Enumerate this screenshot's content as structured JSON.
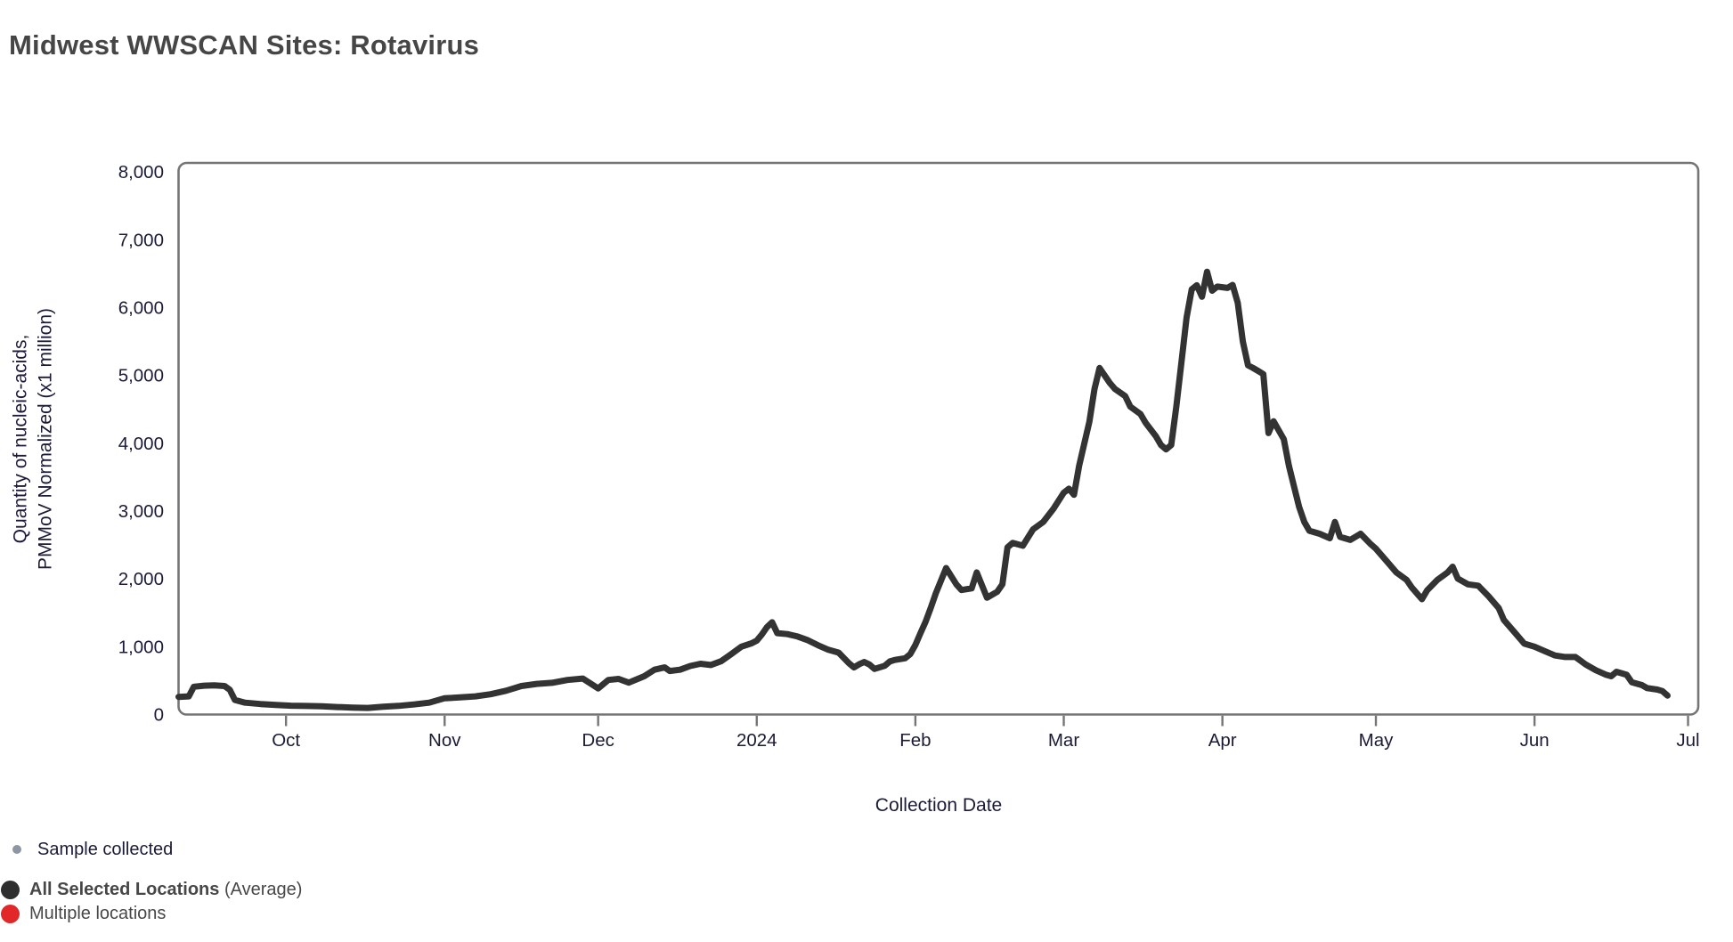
{
  "header": {
    "title": "Midwest WWSCAN Sites: Rotavirus"
  },
  "style": {
    "background": "#ffffff",
    "title_color": "#464646",
    "axis_text_color": "#1b1b38",
    "plot_border_color": "#757575",
    "line_color": "#333333"
  },
  "chart_data": {
    "type": "line",
    "title": "Midwest WWSCAN Sites: Rotavirus",
    "xlabel": "Collection Date",
    "ylabel_lines": [
      "Quantity of nucleic-acids,",
      "PMMoV Normalized (x1 million)"
    ],
    "ylim": [
      0,
      8000
    ],
    "grid": false,
    "legend_position": "bottom-left",
    "x_domain": [
      "2023-09-10",
      "2024-07-03"
    ],
    "yticks": [
      {
        "value": 0,
        "label": "0"
      },
      {
        "value": 1000,
        "label": "1,000"
      },
      {
        "value": 2000,
        "label": "2,000"
      },
      {
        "value": 3000,
        "label": "3,000"
      },
      {
        "value": 4000,
        "label": "4,000"
      },
      {
        "value": 5000,
        "label": "5,000"
      },
      {
        "value": 6000,
        "label": "6,000"
      },
      {
        "value": 7000,
        "label": "7,000"
      },
      {
        "value": 8000,
        "label": "8,000"
      }
    ],
    "xticks": [
      {
        "date": "2023-10-01",
        "label": "Oct"
      },
      {
        "date": "2023-11-01",
        "label": "Nov"
      },
      {
        "date": "2023-12-01",
        "label": "Dec"
      },
      {
        "date": "2024-01-01",
        "label": "2024"
      },
      {
        "date": "2024-02-01",
        "label": "Feb"
      },
      {
        "date": "2024-03-01",
        "label": "Mar"
      },
      {
        "date": "2024-04-01",
        "label": "Apr"
      },
      {
        "date": "2024-05-01",
        "label": "May"
      },
      {
        "date": "2024-06-01",
        "label": "Jun"
      },
      {
        "date": "2024-07-01",
        "label": "Jul"
      }
    ],
    "series": [
      {
        "name": "All Selected Locations (Average)",
        "color": "#333333",
        "points": [
          [
            "2023-09-10",
            260
          ],
          [
            "2023-09-12",
            268
          ],
          [
            "2023-09-13",
            410
          ],
          [
            "2023-09-15",
            425
          ],
          [
            "2023-09-17",
            430
          ],
          [
            "2023-09-19",
            420
          ],
          [
            "2023-09-20",
            365
          ],
          [
            "2023-09-21",
            215
          ],
          [
            "2023-09-23",
            175
          ],
          [
            "2023-09-26",
            155
          ],
          [
            "2023-09-29",
            140
          ],
          [
            "2023-10-02",
            130
          ],
          [
            "2023-10-05",
            126
          ],
          [
            "2023-10-08",
            122
          ],
          [
            "2023-10-11",
            110
          ],
          [
            "2023-10-14",
            103
          ],
          [
            "2023-10-17",
            97
          ],
          [
            "2023-10-20",
            115
          ],
          [
            "2023-10-23",
            127
          ],
          [
            "2023-10-26",
            148
          ],
          [
            "2023-10-29",
            175
          ],
          [
            "2023-11-01",
            240
          ],
          [
            "2023-11-04",
            252
          ],
          [
            "2023-11-07",
            268
          ],
          [
            "2023-11-10",
            300
          ],
          [
            "2023-11-13",
            350
          ],
          [
            "2023-11-16",
            420
          ],
          [
            "2023-11-19",
            452
          ],
          [
            "2023-11-22",
            468
          ],
          [
            "2023-11-25",
            510
          ],
          [
            "2023-11-28",
            530
          ],
          [
            "2023-12-01",
            385
          ],
          [
            "2023-12-03",
            510
          ],
          [
            "2023-12-05",
            525
          ],
          [
            "2023-12-07",
            470
          ],
          [
            "2023-12-10",
            565
          ],
          [
            "2023-12-12",
            660
          ],
          [
            "2023-12-14",
            695
          ],
          [
            "2023-12-15",
            642
          ],
          [
            "2023-12-17",
            660
          ],
          [
            "2023-12-19",
            715
          ],
          [
            "2023-12-21",
            748
          ],
          [
            "2023-12-23",
            730
          ],
          [
            "2023-12-25",
            785
          ],
          [
            "2023-12-27",
            890
          ],
          [
            "2023-12-29",
            1000
          ],
          [
            "2023-12-31",
            1050
          ],
          [
            "2024-01-01",
            1090
          ],
          [
            "2024-01-02",
            1180
          ],
          [
            "2024-01-03",
            1290
          ],
          [
            "2024-01-04",
            1360
          ],
          [
            "2024-01-05",
            1200
          ],
          [
            "2024-01-07",
            1185
          ],
          [
            "2024-01-09",
            1150
          ],
          [
            "2024-01-11",
            1095
          ],
          [
            "2024-01-13",
            1020
          ],
          [
            "2024-01-15",
            955
          ],
          [
            "2024-01-17",
            912
          ],
          [
            "2024-01-18",
            835
          ],
          [
            "2024-01-19",
            758
          ],
          [
            "2024-01-20",
            695
          ],
          [
            "2024-01-21",
            740
          ],
          [
            "2024-01-22",
            775
          ],
          [
            "2024-01-23",
            738
          ],
          [
            "2024-01-24",
            672
          ],
          [
            "2024-01-26",
            718
          ],
          [
            "2024-01-27",
            783
          ],
          [
            "2024-01-28",
            805
          ],
          [
            "2024-01-30",
            830
          ],
          [
            "2024-01-31",
            890
          ],
          [
            "2024-02-01",
            1025
          ],
          [
            "2024-02-02",
            1200
          ],
          [
            "2024-02-03",
            1370
          ],
          [
            "2024-02-04",
            1570
          ],
          [
            "2024-02-05",
            1790
          ],
          [
            "2024-02-07",
            2160
          ],
          [
            "2024-02-09",
            1920
          ],
          [
            "2024-02-10",
            1835
          ],
          [
            "2024-02-12",
            1860
          ],
          [
            "2024-02-13",
            2095
          ],
          [
            "2024-02-15",
            1722
          ],
          [
            "2024-02-17",
            1810
          ],
          [
            "2024-02-18",
            1920
          ],
          [
            "2024-02-19",
            2465
          ],
          [
            "2024-02-20",
            2530
          ],
          [
            "2024-02-22",
            2490
          ],
          [
            "2024-02-24",
            2730
          ],
          [
            "2024-02-26",
            2840
          ],
          [
            "2024-02-28",
            3035
          ],
          [
            "2024-03-01",
            3270
          ],
          [
            "2024-03-02",
            3330
          ],
          [
            "2024-03-03",
            3240
          ],
          [
            "2024-03-04",
            3670
          ],
          [
            "2024-03-06",
            4320
          ],
          [
            "2024-03-07",
            4800
          ],
          [
            "2024-03-08",
            5110
          ],
          [
            "2024-03-10",
            4890
          ],
          [
            "2024-03-11",
            4800
          ],
          [
            "2024-03-13",
            4695
          ],
          [
            "2024-03-14",
            4540
          ],
          [
            "2024-03-16",
            4430
          ],
          [
            "2024-03-17",
            4300
          ],
          [
            "2024-03-19",
            4105
          ],
          [
            "2024-03-20",
            3975
          ],
          [
            "2024-03-21",
            3910
          ],
          [
            "2024-03-22",
            3975
          ],
          [
            "2024-03-23",
            4540
          ],
          [
            "2024-03-24",
            5200
          ],
          [
            "2024-03-25",
            5850
          ],
          [
            "2024-03-26",
            6270
          ],
          [
            "2024-03-27",
            6330
          ],
          [
            "2024-03-28",
            6160
          ],
          [
            "2024-03-29",
            6530
          ],
          [
            "2024-03-30",
            6250
          ],
          [
            "2024-03-31",
            6310
          ],
          [
            "2024-04-02",
            6290
          ],
          [
            "2024-04-03",
            6335
          ],
          [
            "2024-04-04",
            6070
          ],
          [
            "2024-04-05",
            5500
          ],
          [
            "2024-04-06",
            5150
          ],
          [
            "2024-04-07",
            5110
          ],
          [
            "2024-04-08",
            5065
          ],
          [
            "2024-04-09",
            5020
          ],
          [
            "2024-04-10",
            4150
          ],
          [
            "2024-04-11",
            4325
          ],
          [
            "2024-04-13",
            4060
          ],
          [
            "2024-04-14",
            3670
          ],
          [
            "2024-04-15",
            3360
          ],
          [
            "2024-04-16",
            3060
          ],
          [
            "2024-04-17",
            2840
          ],
          [
            "2024-04-18",
            2710
          ],
          [
            "2024-04-20",
            2665
          ],
          [
            "2024-04-22",
            2600
          ],
          [
            "2024-04-23",
            2840
          ],
          [
            "2024-04-24",
            2620
          ],
          [
            "2024-04-26",
            2575
          ],
          [
            "2024-04-28",
            2665
          ],
          [
            "2024-04-30",
            2510
          ],
          [
            "2024-05-01",
            2445
          ],
          [
            "2024-05-03",
            2270
          ],
          [
            "2024-05-05",
            2095
          ],
          [
            "2024-05-07",
            1985
          ],
          [
            "2024-05-08",
            1875
          ],
          [
            "2024-05-10",
            1700
          ],
          [
            "2024-05-11",
            1830
          ],
          [
            "2024-05-13",
            1985
          ],
          [
            "2024-05-15",
            2095
          ],
          [
            "2024-05-16",
            2180
          ],
          [
            "2024-05-17",
            2005
          ],
          [
            "2024-05-19",
            1920
          ],
          [
            "2024-05-21",
            1900
          ],
          [
            "2024-05-23",
            1745
          ],
          [
            "2024-05-25",
            1570
          ],
          [
            "2024-05-26",
            1395
          ],
          [
            "2024-05-28",
            1220
          ],
          [
            "2024-05-30",
            1045
          ],
          [
            "2024-06-01",
            1000
          ],
          [
            "2024-06-03",
            935
          ],
          [
            "2024-06-05",
            870
          ],
          [
            "2024-06-07",
            848
          ],
          [
            "2024-06-09",
            848
          ],
          [
            "2024-06-11",
            738
          ],
          [
            "2024-06-13",
            652
          ],
          [
            "2024-06-15",
            586
          ],
          [
            "2024-06-16",
            564
          ],
          [
            "2024-06-17",
            630
          ],
          [
            "2024-06-19",
            586
          ],
          [
            "2024-06-20",
            476
          ],
          [
            "2024-06-22",
            433
          ],
          [
            "2024-06-23",
            390
          ],
          [
            "2024-06-25",
            367
          ],
          [
            "2024-06-26",
            345
          ],
          [
            "2024-06-27",
            280
          ]
        ]
      }
    ]
  },
  "legend": {
    "items": [
      {
        "label": "Sample collected",
        "suffix": "",
        "marker_color": "#8e96a3",
        "marker_diameter": 10,
        "bold": false
      },
      {
        "label": "All Selected Locations",
        "suffix": " (Average)",
        "marker_color": "#2e2e2e",
        "marker_diameter": 21,
        "bold": true
      },
      {
        "label": "Multiple locations",
        "suffix": "",
        "marker_color": "#e12727",
        "marker_diameter": 21,
        "bold": false
      }
    ]
  }
}
